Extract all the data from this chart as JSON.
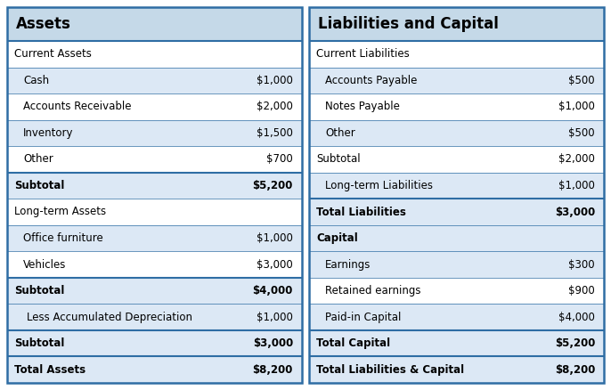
{
  "left_title": "Assets",
  "right_title": "Liabilities and Capital",
  "left_rows": [
    {
      "label": "Current Assets",
      "value": "",
      "style": "section_header",
      "bg": "#ffffff",
      "bold": false
    },
    {
      "label": "  Cash",
      "value": "$1,000",
      "style": "item_shaded",
      "bg": "#dce8f5",
      "bold": false
    },
    {
      "label": "  Accounts Receivable",
      "value": "$2,000",
      "style": "item",
      "bg": "#ffffff",
      "bold": false
    },
    {
      "label": "  Inventory",
      "value": "$1,500",
      "style": "item_shaded",
      "bg": "#dce8f5",
      "bold": false
    },
    {
      "label": "  Other",
      "value": "$700",
      "style": "item",
      "bg": "#ffffff",
      "bold": false
    },
    {
      "label": "Subtotal",
      "value": "$5,200",
      "style": "subtotal",
      "bg": "#dce8f5",
      "bold": true
    },
    {
      "label": "Long-term Assets",
      "value": "",
      "style": "section_header",
      "bg": "#ffffff",
      "bold": false
    },
    {
      "label": "  Office furniture",
      "value": "$1,000",
      "style": "item_shaded",
      "bg": "#dce8f5",
      "bold": false
    },
    {
      "label": "  Vehicles",
      "value": "$3,000",
      "style": "item",
      "bg": "#ffffff",
      "bold": false
    },
    {
      "label": "Subtotal",
      "value": "$4,000",
      "style": "subtotal",
      "bg": "#dce8f5",
      "bold": true
    },
    {
      "label": "    Less Accumulated Depreciation",
      "value": "$1,000",
      "style": "item_shaded",
      "bg": "#dce8f5",
      "bold": false
    },
    {
      "label": "Subtotal",
      "value": "$3,000",
      "style": "subtotal",
      "bg": "#dce8f5",
      "bold": true
    },
    {
      "label": "Total Assets",
      "value": "$8,200",
      "style": "total",
      "bg": "#dce8f5",
      "bold": true
    }
  ],
  "right_rows": [
    {
      "label": "Current Liabilities",
      "value": "",
      "style": "section_header",
      "bg": "#ffffff",
      "bold": false
    },
    {
      "label": "  Accounts Payable",
      "value": "$500",
      "style": "item_shaded",
      "bg": "#dce8f5",
      "bold": false
    },
    {
      "label": "  Notes Payable",
      "value": "$1,000",
      "style": "item",
      "bg": "#ffffff",
      "bold": false
    },
    {
      "label": "  Other",
      "value": "$500",
      "style": "item_shaded",
      "bg": "#dce8f5",
      "bold": false
    },
    {
      "label": "Subtotal",
      "value": "$2,000",
      "style": "subtotal_plain",
      "bg": "#ffffff",
      "bold": false
    },
    {
      "label": "  Long-term Liabilities",
      "value": "$1,000",
      "style": "item_shaded",
      "bg": "#dce8f5",
      "bold": false
    },
    {
      "label": "Total Liabilities",
      "value": "$3,000",
      "style": "subtotal",
      "bg": "#dce8f5",
      "bold": true
    },
    {
      "label": "Capital",
      "value": "",
      "style": "section_header2",
      "bg": "#dce8f5",
      "bold": true
    },
    {
      "label": "  Earnings",
      "value": "$300",
      "style": "item_shaded",
      "bg": "#dce8f5",
      "bold": false
    },
    {
      "label": "  Retained earnings",
      "value": "$900",
      "style": "item",
      "bg": "#ffffff",
      "bold": false
    },
    {
      "label": "  Paid-in Capital",
      "value": "$4,000",
      "style": "item_shaded",
      "bg": "#dce8f5",
      "bold": false
    },
    {
      "label": "Total Capital",
      "value": "$5,200",
      "style": "subtotal",
      "bg": "#dce8f5",
      "bold": true
    },
    {
      "label": "Total Liabilities & Capital",
      "value": "$8,200",
      "style": "total",
      "bg": "#dce8f5",
      "bold": true
    }
  ],
  "title_bg": "#c5d9e8",
  "border_color": "#2e6da4",
  "outer_bg": "#ffffff",
  "fig_width": 6.86,
  "fig_height": 4.38,
  "dpi": 100
}
